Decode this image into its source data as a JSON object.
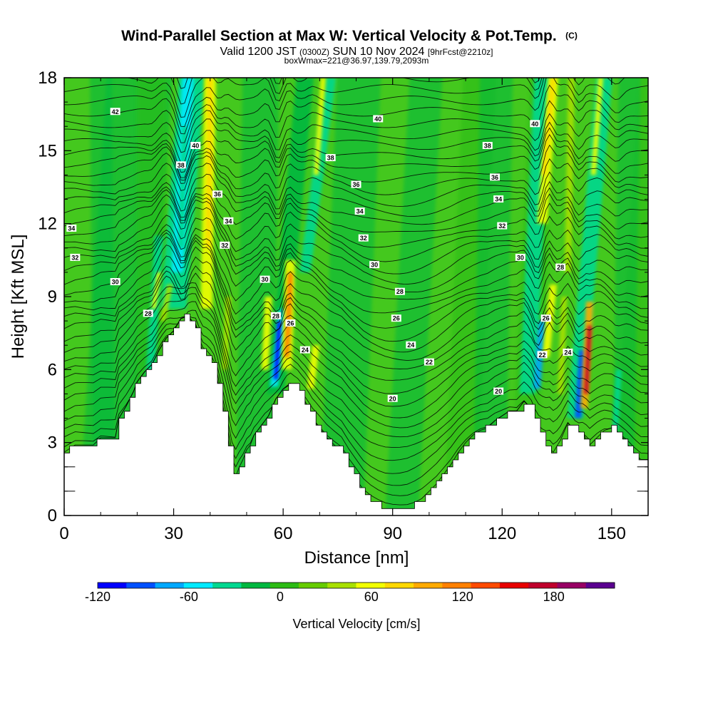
{
  "chart_data": {
    "type": "heatmap",
    "title": "Wind-Parallel Section at Max W: Vertical Velocity & Pot.Temp.",
    "title_suffix": "(C)",
    "subtitle_parts": [
      "Valid 1200 JST ",
      "(0300Z)",
      " SUN 10 Nov 2024 ",
      "[9hrFcst@2210z]"
    ],
    "subtitle2": "boxWmax=221@36.97,139.79,2093m",
    "xlabel": "Distance [nm]",
    "ylabel": "Height [Kft MSL]",
    "xlim": [
      0,
      160
    ],
    "ylim": [
      0,
      18
    ],
    "xticks": [
      0,
      30,
      60,
      90,
      120,
      150
    ],
    "xticklabels": [
      "0",
      "30",
      "60",
      "90",
      "120",
      "150"
    ],
    "yticks": [
      0,
      3,
      6,
      9,
      12,
      15,
      18
    ],
    "yticklabels": [
      "0",
      "3",
      "6",
      "9",
      "12",
      "15",
      "18"
    ],
    "grid": false,
    "colorbar": {
      "label": "Vertical Velocity [cm/s]",
      "min": -120,
      "max": 220,
      "step": 20,
      "ticks": [
        "-120",
        "-60",
        "0",
        "60",
        "120",
        "180"
      ],
      "colors": [
        "#0000ff",
        "#0050ff",
        "#00a8ff",
        "#00eaff",
        "#00d890",
        "#00b840",
        "#2cbc14",
        "#66cc00",
        "#a8e000",
        "#f2ff00",
        "#ffd800",
        "#ffaa00",
        "#ff8000",
        "#ff4a00",
        "#e80000",
        "#c0002c",
        "#980064",
        "#5a0090"
      ]
    },
    "terrain_kft": [
      [
        0,
        2.6
      ],
      [
        3,
        2.9
      ],
      [
        8,
        2.9
      ],
      [
        10,
        3.2
      ],
      [
        14,
        3.2
      ],
      [
        15,
        4
      ],
      [
        17,
        4.5
      ],
      [
        19,
        5.1
      ],
      [
        20,
        5.5
      ],
      [
        22,
        5.9
      ],
      [
        24,
        6.2
      ],
      [
        26,
        6.8
      ],
      [
        28,
        7.3
      ],
      [
        30,
        7.6
      ],
      [
        32,
        8.1
      ],
      [
        34,
        8.2
      ],
      [
        36,
        7.8
      ],
      [
        37,
        7.2
      ],
      [
        38,
        6.7
      ],
      [
        40,
        6.3
      ],
      [
        41,
        6.1
      ],
      [
        42,
        5.5
      ],
      [
        43,
        4.6
      ],
      [
        44,
        3.7
      ],
      [
        45,
        2.8
      ],
      [
        46,
        1.9
      ],
      [
        47,
        1.6
      ],
      [
        48,
        2.0
      ],
      [
        49,
        2.3
      ],
      [
        50,
        2.7
      ],
      [
        51,
        2.9
      ],
      [
        52,
        3.3
      ],
      [
        54,
        3.7
      ],
      [
        56,
        4.1
      ],
      [
        58,
        4.8
      ],
      [
        60,
        5.2
      ],
      [
        62,
        5.4
      ],
      [
        64,
        5.2
      ],
      [
        66,
        4.7
      ],
      [
        68,
        4.0
      ],
      [
        70,
        3.6
      ],
      [
        72,
        3.2
      ],
      [
        74,
        2.9
      ],
      [
        76,
        2.6
      ],
      [
        78,
        2.0
      ],
      [
        80,
        1.5
      ],
      [
        82,
        1.0
      ],
      [
        84,
        0.7
      ],
      [
        86,
        0.5
      ],
      [
        88,
        0.35
      ],
      [
        90,
        0.3
      ],
      [
        92,
        0.3
      ],
      [
        94,
        0.35
      ],
      [
        96,
        0.5
      ],
      [
        98,
        0.7
      ],
      [
        100,
        1.0
      ],
      [
        102,
        1.3
      ],
      [
        104,
        1.7
      ],
      [
        106,
        2.1
      ],
      [
        108,
        2.6
      ],
      [
        110,
        3.0
      ],
      [
        112,
        3.3
      ],
      [
        114,
        3.5
      ],
      [
        116,
        3.6
      ],
      [
        118,
        3.9
      ],
      [
        120,
        4.1
      ],
      [
        122,
        4.3
      ],
      [
        124,
        4.3
      ],
      [
        126,
        4.7
      ],
      [
        128,
        4.4
      ],
      [
        130,
        3.6
      ],
      [
        132,
        2.8
      ],
      [
        134,
        2.6
      ],
      [
        136,
        3.1
      ],
      [
        138,
        3.8
      ],
      [
        140,
        3.5
      ],
      [
        142,
        3.4
      ],
      [
        144,
        2.9
      ],
      [
        146,
        3.2
      ],
      [
        148,
        3.5
      ],
      [
        150,
        3.6
      ],
      [
        152,
        3.4
      ],
      [
        154,
        3.0
      ],
      [
        156,
        2.6
      ],
      [
        158,
        2.3
      ],
      [
        160,
        2.3
      ]
    ],
    "contour_labels": [
      {
        "x": 14,
        "y": 16.6,
        "text": "42"
      },
      {
        "x": 86,
        "y": 16.3,
        "text": "40"
      },
      {
        "x": 129,
        "y": 16.1,
        "text": "40"
      },
      {
        "x": 36,
        "y": 15.2,
        "text": "40"
      },
      {
        "x": 116,
        "y": 15.2,
        "text": "38"
      },
      {
        "x": 73,
        "y": 14.7,
        "text": "38"
      },
      {
        "x": 32,
        "y": 14.4,
        "text": "38"
      },
      {
        "x": 118,
        "y": 13.9,
        "text": "36"
      },
      {
        "x": 80,
        "y": 13.6,
        "text": "36"
      },
      {
        "x": 42,
        "y": 13.2,
        "text": "36"
      },
      {
        "x": 119,
        "y": 13.0,
        "text": "34"
      },
      {
        "x": 81,
        "y": 12.5,
        "text": "34"
      },
      {
        "x": 45,
        "y": 12.1,
        "text": "34"
      },
      {
        "x": 2,
        "y": 11.8,
        "text": "34"
      },
      {
        "x": 120,
        "y": 11.9,
        "text": "32"
      },
      {
        "x": 82,
        "y": 11.4,
        "text": "32"
      },
      {
        "x": 44,
        "y": 11.1,
        "text": "32"
      },
      {
        "x": 3,
        "y": 10.6,
        "text": "32"
      },
      {
        "x": 125,
        "y": 10.6,
        "text": "30"
      },
      {
        "x": 136,
        "y": 10.2,
        "text": "28"
      },
      {
        "x": 85,
        "y": 10.3,
        "text": "30"
      },
      {
        "x": 55,
        "y": 9.7,
        "text": "30"
      },
      {
        "x": 14,
        "y": 9.6,
        "text": "30"
      },
      {
        "x": 92,
        "y": 9.2,
        "text": "28"
      },
      {
        "x": 23,
        "y": 8.3,
        "text": "28"
      },
      {
        "x": 58,
        "y": 8.2,
        "text": "28"
      },
      {
        "x": 62,
        "y": 7.9,
        "text": "26"
      },
      {
        "x": 91,
        "y": 8.1,
        "text": "26"
      },
      {
        "x": 132,
        "y": 8.1,
        "text": "26"
      },
      {
        "x": 95,
        "y": 7.0,
        "text": "24"
      },
      {
        "x": 66,
        "y": 6.8,
        "text": "24"
      },
      {
        "x": 138,
        "y": 6.7,
        "text": "24"
      },
      {
        "x": 131,
        "y": 6.6,
        "text": "22"
      },
      {
        "x": 100,
        "y": 6.3,
        "text": "22"
      },
      {
        "x": 119,
        "y": 5.1,
        "text": "20"
      },
      {
        "x": 90,
        "y": 4.8,
        "text": "20"
      }
    ],
    "features": {
      "background": "0 to 20",
      "updraft_max_cm_s": 221,
      "strong_downdrafts_nm": [
        58,
        130,
        141
      ],
      "strong_updrafts_nm": [
        61,
        143,
        132,
        39
      ]
    }
  }
}
